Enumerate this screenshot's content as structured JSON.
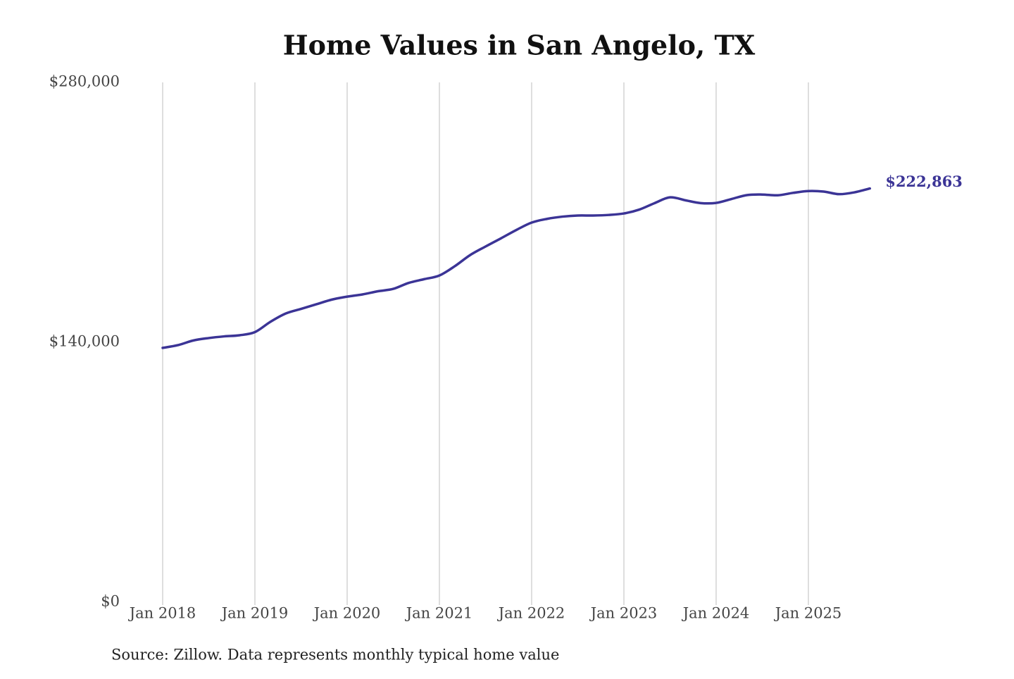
{
  "chart_data": {
    "type": "line",
    "title": "Home Values in San Angelo, TX",
    "source": "Source: Zillow. Data represents monthly typical home value",
    "x": [
      "2018-01",
      "2018-03",
      "2018-05",
      "2018-07",
      "2018-09",
      "2018-11",
      "2019-01",
      "2019-03",
      "2019-05",
      "2019-07",
      "2019-09",
      "2019-11",
      "2020-01",
      "2020-03",
      "2020-05",
      "2020-07",
      "2020-09",
      "2020-11",
      "2021-01",
      "2021-03",
      "2021-05",
      "2021-07",
      "2021-09",
      "2021-11",
      "2022-01",
      "2022-03",
      "2022-05",
      "2022-07",
      "2022-09",
      "2022-11",
      "2023-01",
      "2023-03",
      "2023-05",
      "2023-07",
      "2023-09",
      "2023-11",
      "2024-01",
      "2024-03",
      "2024-05",
      "2024-07",
      "2024-09",
      "2024-11",
      "2025-01",
      "2025-03",
      "2025-05",
      "2025-07",
      "2025-09"
    ],
    "series": [
      {
        "name": "San Angelo, TX",
        "color": "#3b3496",
        "values": [
          137000,
          138500,
          141000,
          142300,
          143200,
          143800,
          145500,
          151000,
          155500,
          158000,
          160500,
          163000,
          164600,
          165800,
          167500,
          168800,
          172000,
          174000,
          176000,
          181000,
          187000,
          191600,
          196000,
          200500,
          204500,
          206500,
          207700,
          208300,
          208300,
          208600,
          209400,
          211500,
          215000,
          218100,
          216500,
          215000,
          215100,
          217200,
          219300,
          219600,
          219200,
          220500,
          221500,
          221200,
          219800,
          220800,
          222863
        ],
        "value_labels": [
          null,
          null,
          null,
          null,
          null,
          null,
          null,
          null,
          null,
          null,
          null,
          null,
          null,
          null,
          null,
          null,
          null,
          null,
          null,
          null,
          null,
          null,
          null,
          null,
          null,
          null,
          null,
          null,
          null,
          null,
          null,
          null,
          null,
          null,
          null,
          null,
          null,
          null,
          null,
          null,
          null,
          null,
          null,
          null,
          null,
          null,
          "$222,863"
        ]
      }
    ],
    "ylim": [
      0,
      280000
    ],
    "yticks": [
      {
        "value": 0,
        "label": "$0"
      },
      {
        "value": 140000,
        "label": "$140,000"
      },
      {
        "value": 280000,
        "label": "$280,000"
      }
    ],
    "xticks": [
      {
        "value": "2018-01",
        "label": "Jan 2018"
      },
      {
        "value": "2019-01",
        "label": "Jan 2019"
      },
      {
        "value": "2020-01",
        "label": "Jan 2020"
      },
      {
        "value": "2021-01",
        "label": "Jan 2021"
      },
      {
        "value": "2022-01",
        "label": "Jan 2022"
      },
      {
        "value": "2023-01",
        "label": "Jan 2023"
      },
      {
        "value": "2024-01",
        "label": "Jan 2024"
      },
      {
        "value": "2025-01",
        "label": "Jan 2025"
      }
    ],
    "grid": "x"
  }
}
